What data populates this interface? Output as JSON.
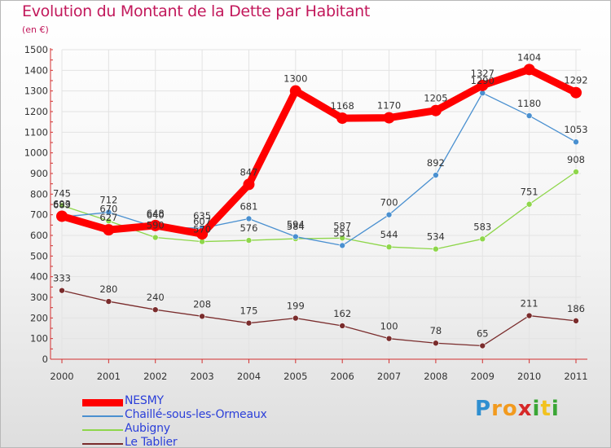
{
  "header": {
    "title": "Evolution du Montant de la Dette par Habitant",
    "unit": "(en €)"
  },
  "logo": {
    "letters": [
      {
        "char": "P",
        "color": "#2f8fd0"
      },
      {
        "char": "r",
        "color": "#f29a1e"
      },
      {
        "char": "o",
        "color": "#f29a1e"
      },
      {
        "char": "x",
        "color": "#d62828"
      },
      {
        "char": "i",
        "color": "#3aa635"
      },
      {
        "char": "t",
        "color": "#f2c21e"
      },
      {
        "char": "i",
        "color": "#3aa635"
      }
    ]
  },
  "chart_data": {
    "type": "line",
    "title": "Evolution du Montant de la Dette par Habitant",
    "ylabel": "(en €)",
    "xlabel": "",
    "ylim": [
      0,
      1500
    ],
    "y_ticks": [
      0,
      100,
      200,
      300,
      400,
      500,
      600,
      700,
      800,
      900,
      1000,
      1100,
      1200,
      1300,
      1400,
      1500
    ],
    "categories": [
      "2000",
      "2001",
      "2002",
      "2003",
      "2004",
      "2005",
      "2006",
      "2007",
      "2008",
      "2009",
      "2010",
      "2011"
    ],
    "grid": true,
    "legend_position": "bottom-left",
    "series": [
      {
        "name": "NESMY",
        "color": "#ff0000",
        "values": [
          693,
          627,
          648,
          607,
          847,
          1300,
          1168,
          1170,
          1205,
          1327,
          1404,
          1292
        ]
      },
      {
        "name": "Chaillé-sous-les-Ormeaux",
        "color": "#4a90d0",
        "values": [
          689,
          712,
          640,
          635,
          681,
          594,
          551,
          700,
          892,
          1290,
          1180,
          1053
        ]
      },
      {
        "name": "Aubigny",
        "color": "#8ed64a",
        "values": [
          745,
          670,
          590,
          570,
          576,
          584,
          587,
          544,
          534,
          583,
          751,
          908
        ]
      },
      {
        "name": "Le Tablier",
        "color": "#7a2c2c",
        "values": [
          333,
          280,
          240,
          208,
          175,
          199,
          162,
          100,
          78,
          65,
          211,
          186
        ]
      }
    ]
  }
}
